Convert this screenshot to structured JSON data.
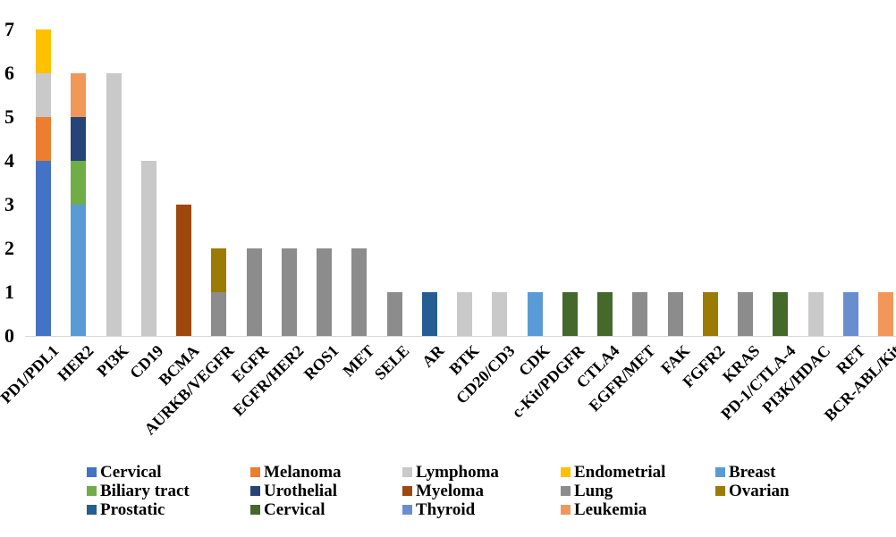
{
  "chart_data": {
    "type": "stacked-bar",
    "title": "",
    "xlabel": "",
    "ylabel": "",
    "ylim": [
      0,
      7
    ],
    "yticks": [
      "0",
      "1",
      "2",
      "3",
      "4",
      "5",
      "6",
      "7"
    ],
    "grid": false,
    "legend_position": "bottom",
    "axis_line_color": "#d9d9d9",
    "series": [
      {
        "name": "Cervical",
        "color": "#4472C4"
      },
      {
        "name": "Melanoma",
        "color": "#ED7D31"
      },
      {
        "name": "Lymphoma",
        "color": "#C9C9C9"
      },
      {
        "name": "Endometrial",
        "color": "#FFC000"
      },
      {
        "name": "Breast",
        "color": "#5B9BD5"
      },
      {
        "name": "Biliary tract",
        "color": "#70AD47"
      },
      {
        "name": "Urothelial",
        "color": "#264478"
      },
      {
        "name": "Myeloma",
        "color": "#9E480E"
      },
      {
        "name": "Lung",
        "color": "#8C8C8C"
      },
      {
        "name": "Ovarian",
        "color": "#9C7A06"
      },
      {
        "name": "Prostatic",
        "color": "#255E91"
      },
      {
        "name": "Cervical",
        "color": "#45682B"
      },
      {
        "name": "Thyroid",
        "color": "#698ED0"
      },
      {
        "name": "Leukemia",
        "color": "#F1975A"
      }
    ],
    "legend_rows": [
      [
        0,
        1,
        2,
        3,
        4
      ],
      [
        5,
        6,
        7,
        8,
        9
      ],
      [
        10,
        11,
        12,
        13
      ]
    ],
    "categories": [
      "PD1/PDL1",
      "HER2",
      "PI3K",
      "CD19",
      "BCMA",
      "AURKB/VEGFR",
      "EGFR",
      "EGFR/HER2",
      "ROS1",
      "MET",
      "SELE",
      "AR",
      "BTK",
      "CD20/CD3",
      "CDK",
      "c-Kit/PDGFR",
      "CTLA4",
      "EGFR/MET",
      "FAK",
      "FGFR2",
      "KRAS",
      "PD-1/CTLA-4",
      "PI3K/HDAC",
      "RET",
      "BCR-ABL/Kit"
    ],
    "bars": [
      {
        "category": "PD1/PDL1",
        "total": 7,
        "segments": [
          {
            "series_index": 0,
            "series": "Cervical",
            "value": 4
          },
          {
            "series_index": 1,
            "series": "Melanoma",
            "value": 1
          },
          {
            "series_index": 2,
            "series": "Lymphoma",
            "value": 1
          },
          {
            "series_index": 3,
            "series": "Endometrial",
            "value": 1
          }
        ]
      },
      {
        "category": "HER2",
        "total": 6,
        "segments": [
          {
            "series_index": 4,
            "series": "Breast",
            "value": 3
          },
          {
            "series_index": 5,
            "series": "Biliary tract",
            "value": 1
          },
          {
            "series_index": 6,
            "series": "Urothelial",
            "value": 1
          },
          {
            "series_index": 13,
            "series": "Leukemia",
            "value": 1
          }
        ]
      },
      {
        "category": "PI3K",
        "total": 6,
        "segments": [
          {
            "series_index": 2,
            "series": "Lymphoma",
            "value": 6
          }
        ]
      },
      {
        "category": "CD19",
        "total": 4,
        "segments": [
          {
            "series_index": 2,
            "series": "Lymphoma",
            "value": 4
          }
        ]
      },
      {
        "category": "BCMA",
        "total": 3,
        "segments": [
          {
            "series_index": 7,
            "series": "Myeloma",
            "value": 3
          }
        ]
      },
      {
        "category": "AURKB/VEGFR",
        "total": 2,
        "segments": [
          {
            "series_index": 8,
            "series": "Lung",
            "value": 1
          },
          {
            "series_index": 9,
            "series": "Ovarian",
            "value": 1
          }
        ]
      },
      {
        "category": "EGFR",
        "total": 2,
        "segments": [
          {
            "series_index": 8,
            "series": "Lung",
            "value": 2
          }
        ]
      },
      {
        "category": "EGFR/HER2",
        "total": 2,
        "segments": [
          {
            "series_index": 8,
            "series": "Lung",
            "value": 2
          }
        ]
      },
      {
        "category": "ROS1",
        "total": 2,
        "segments": [
          {
            "series_index": 8,
            "series": "Lung",
            "value": 2
          }
        ]
      },
      {
        "category": "MET",
        "total": 2,
        "segments": [
          {
            "series_index": 8,
            "series": "Lung",
            "value": 2
          }
        ]
      },
      {
        "category": "SELE",
        "total": 1,
        "segments": [
          {
            "series_index": 8,
            "series": "Lung",
            "value": 1
          }
        ]
      },
      {
        "category": "AR",
        "total": 1,
        "segments": [
          {
            "series_index": 10,
            "series": "Prostatic",
            "value": 1
          }
        ]
      },
      {
        "category": "BTK",
        "total": 1,
        "segments": [
          {
            "series_index": 2,
            "series": "Lymphoma",
            "value": 1
          }
        ]
      },
      {
        "category": "CD20/CD3",
        "total": 1,
        "segments": [
          {
            "series_index": 2,
            "series": "Lymphoma",
            "value": 1
          }
        ]
      },
      {
        "category": "CDK",
        "total": 1,
        "segments": [
          {
            "series_index": 4,
            "series": "Breast",
            "value": 1
          }
        ]
      },
      {
        "category": "c-Kit/PDGFR",
        "total": 1,
        "segments": [
          {
            "series_index": 11,
            "series": "Cervical",
            "value": 1
          }
        ]
      },
      {
        "category": "CTLA4",
        "total": 1,
        "segments": [
          {
            "series_index": 11,
            "series": "Cervical",
            "value": 1
          }
        ]
      },
      {
        "category": "EGFR/MET",
        "total": 1,
        "segments": [
          {
            "series_index": 8,
            "series": "Lung",
            "value": 1
          }
        ]
      },
      {
        "category": "FAK",
        "total": 1,
        "segments": [
          {
            "series_index": 8,
            "series": "Lung",
            "value": 1
          }
        ]
      },
      {
        "category": "FGFR2",
        "total": 1,
        "segments": [
          {
            "series_index": 9,
            "series": "Ovarian",
            "value": 1
          }
        ]
      },
      {
        "category": "KRAS",
        "total": 1,
        "segments": [
          {
            "series_index": 8,
            "series": "Lung",
            "value": 1
          }
        ]
      },
      {
        "category": "PD-1/CTLA-4",
        "total": 1,
        "segments": [
          {
            "series_index": 11,
            "series": "Cervical",
            "value": 1
          }
        ]
      },
      {
        "category": "PI3K/HDAC",
        "total": 1,
        "segments": [
          {
            "series_index": 2,
            "series": "Lymphoma",
            "value": 1
          }
        ]
      },
      {
        "category": "RET",
        "total": 1,
        "segments": [
          {
            "series_index": 12,
            "series": "Thyroid",
            "value": 1
          }
        ]
      },
      {
        "category": "BCR-ABL/Kit",
        "total": 1,
        "segments": [
          {
            "series_index": 13,
            "series": "Leukemia",
            "value": 1
          }
        ]
      }
    ]
  }
}
